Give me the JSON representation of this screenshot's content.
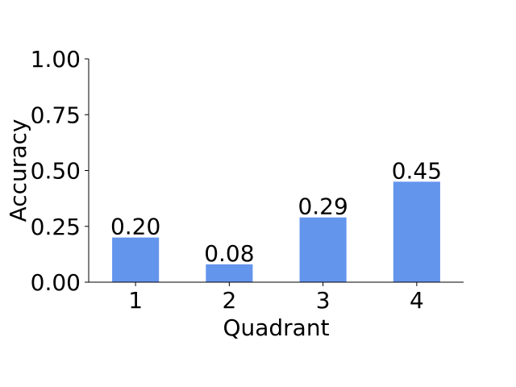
{
  "chart_data": {
    "type": "bar",
    "categories": [
      "1",
      "2",
      "3",
      "4"
    ],
    "values": [
      0.2,
      0.08,
      0.29,
      0.45
    ],
    "data_labels": [
      "0.20",
      "0.08",
      "0.29",
      "0.45"
    ],
    "title": "",
    "xlabel": "Quadrant",
    "ylabel": "Accuracy",
    "ylim": [
      0,
      1.0
    ],
    "yticks": [
      0.0,
      0.25,
      0.5,
      0.75,
      1.0
    ],
    "ytick_labels": [
      "0.00",
      "0.25",
      "0.50",
      "0.75",
      "1.00"
    ],
    "grid": false,
    "bar_color": "#6495ED"
  }
}
